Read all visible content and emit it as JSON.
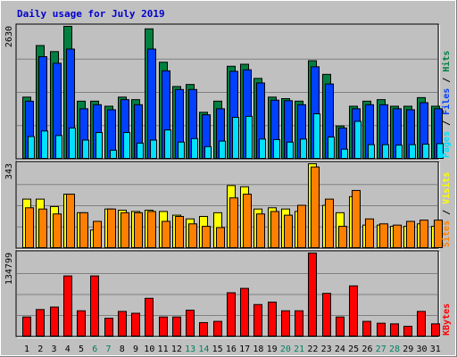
{
  "title": "Daily usage for July 2019",
  "colors": {
    "background": "#c0c0c0",
    "frame": "#ffffff",
    "hits": "#008040",
    "files": "#0040ff",
    "pages": "#00e0ff",
    "visits": "#ffff00",
    "sites": "#ff8000",
    "kbytes": "#ff0000",
    "weekday_label": "#000000",
    "weekend_label": "#008060"
  },
  "chart_data": [
    {
      "type": "bar",
      "name": "hits-files-pages",
      "ymax_label": "2630",
      "ylim": [
        0,
        2630
      ],
      "legend_segments": [
        {
          "text": "Pages",
          "color": "#00e0ff"
        },
        {
          "text": " / ",
          "color": "#000000"
        },
        {
          "text": "Files",
          "color": "#0040ff"
        },
        {
          "text": " / ",
          "color": "#000000"
        },
        {
          "text": "Hits",
          "color": "#008040"
        }
      ],
      "series": [
        {
          "name": "Hits",
          "values": [
            1230,
            2250,
            2130,
            2630,
            1150,
            1150,
            1050,
            1230,
            1180,
            2580,
            1920,
            1440,
            1480,
            930,
            1150,
            1840,
            1880,
            1600,
            1230,
            1200,
            1150,
            1950,
            1680,
            660,
            1050,
            1150,
            1180,
            1050,
            1050,
            1220,
            1050
          ]
        },
        {
          "name": "Files",
          "values": [
            1150,
            2030,
            1900,
            2180,
            1000,
            1080,
            980,
            1180,
            1080,
            2180,
            1750,
            1380,
            1380,
            880,
            1000,
            1740,
            1770,
            1510,
            1170,
            1160,
            1080,
            1830,
            1490,
            620,
            1000,
            1080,
            1080,
            1000,
            980,
            1120,
            1000
          ]
        },
        {
          "name": "Pages",
          "values": [
            450,
            560,
            470,
            620,
            380,
            530,
            180,
            530,
            320,
            380,
            580,
            340,
            410,
            250,
            360,
            830,
            850,
            400,
            390,
            340,
            400,
            900,
            440,
            200,
            750,
            290,
            290,
            280,
            290,
            300,
            310
          ]
        }
      ]
    },
    {
      "type": "bar",
      "name": "visits-sites",
      "ymax_label": "343",
      "ylim": [
        0,
        343
      ],
      "legend_segments": [
        {
          "text": "Sites",
          "color": "#ff8000"
        },
        {
          "text": " / ",
          "color": "#000000"
        },
        {
          "text": "Visits",
          "color": "#ffff00"
        }
      ],
      "series": [
        {
          "name": "Visits",
          "values": [
            200,
            200,
            170,
            220,
            145,
            75,
            160,
            155,
            150,
            155,
            150,
            135,
            120,
            130,
            145,
            255,
            250,
            160,
            165,
            160,
            150,
            343,
            175,
            145,
            210,
            95,
            95,
            90,
            90,
            100,
            90
          ]
        },
        {
          "name": "Sites",
          "values": [
            165,
            160,
            140,
            220,
            145,
            110,
            160,
            145,
            145,
            150,
            110,
            130,
            100,
            90,
            85,
            205,
            220,
            140,
            150,
            135,
            175,
            330,
            200,
            90,
            235,
            120,
            100,
            95,
            110,
            115,
            115
          ]
        }
      ]
    },
    {
      "type": "bar",
      "name": "kbytes",
      "ymax_label": "134799",
      "ylim": [
        0,
        134799
      ],
      "legend_segments": [
        {
          "text": "KBytes",
          "color": "#ff0000"
        }
      ],
      "series": [
        {
          "name": "KBytes",
          "values": [
            32000,
            44000,
            48000,
            98000,
            42000,
            98000,
            30000,
            41000,
            38000,
            62000,
            32000,
            32000,
            43000,
            23000,
            25000,
            71000,
            78000,
            52000,
            56000,
            42000,
            42000,
            134799,
            70000,
            32000,
            82000,
            25000,
            22000,
            21000,
            17000,
            41000,
            21000
          ]
        }
      ]
    }
  ],
  "x_axis": {
    "labels": [
      "1",
      "2",
      "3",
      "4",
      "5",
      "6",
      "7",
      "8",
      "9",
      "10",
      "11",
      "12",
      "13",
      "14",
      "15",
      "16",
      "17",
      "18",
      "19",
      "20",
      "21",
      "22",
      "23",
      "24",
      "25",
      "26",
      "27",
      "28",
      "29",
      "30",
      "31"
    ],
    "weekend_days": [
      6,
      7,
      13,
      14,
      20,
      21,
      27,
      28
    ]
  }
}
